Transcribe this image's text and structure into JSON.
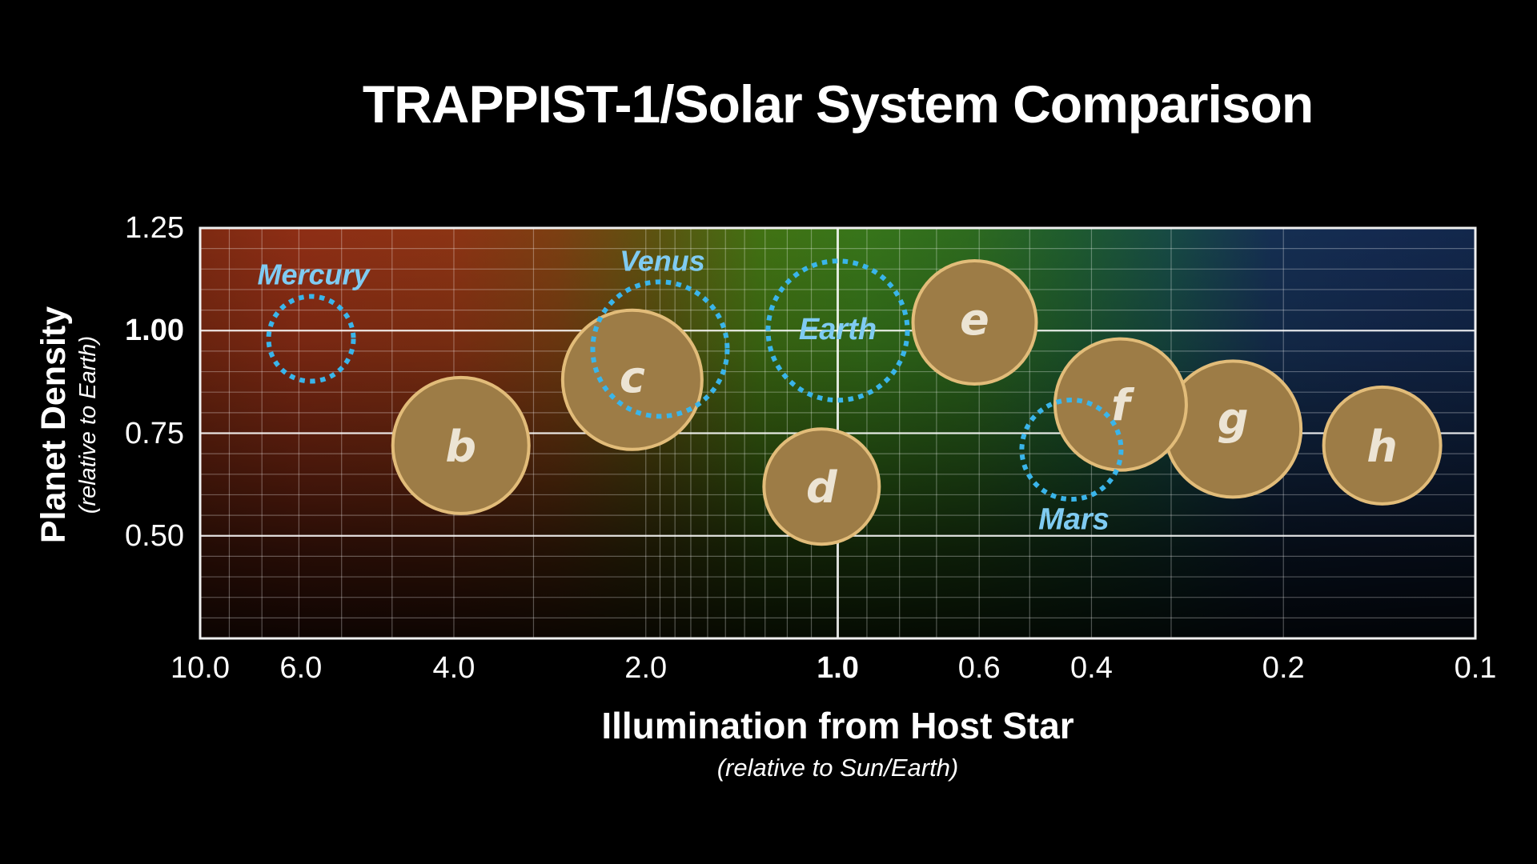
{
  "title": "TRAPPIST-1/Solar System Comparison",
  "axes": {
    "x": {
      "title": "Illumination from Host Star",
      "subtitle": "(relative to Sun/Earth)",
      "scale": "log-reversed",
      "min": 0.1,
      "max": 10,
      "ticks": [
        {
          "label": "10.0",
          "value": 10.0
        },
        {
          "label": "6.0",
          "value": 6.0,
          "render_value": 6.95
        },
        {
          "label": "4.0",
          "value": 4.0
        },
        {
          "label": "2.0",
          "value": 2.0
        },
        {
          "label": "1.0",
          "value": 1.0,
          "bold": true
        },
        {
          "label": "0.6",
          "value": 0.6
        },
        {
          "label": "0.4",
          "value": 0.4
        },
        {
          "label": "0.2",
          "value": 0.2
        },
        {
          "label": "0.1",
          "value": 0.1
        }
      ]
    },
    "y": {
      "title": "Planet Density",
      "subtitle": "(relative to Earth)",
      "min": 0.25,
      "max": 1.25,
      "ticks": [
        {
          "label": "1.25",
          "value": 1.25
        },
        {
          "label": "1.00",
          "value": 1.0,
          "bold": true
        },
        {
          "label": "0.75",
          "value": 0.75
        },
        {
          "label": "0.50",
          "value": 0.5
        }
      ]
    }
  },
  "grid": {
    "x_minor": [
      9,
      8,
      7,
      6,
      5,
      4,
      3,
      2,
      1.9,
      1.8,
      1.7,
      1.6,
      1.5,
      1.4,
      1.3,
      1.2,
      1.1,
      0.9,
      0.8,
      0.7,
      0.6,
      0.5,
      0.4,
      0.3,
      0.2
    ],
    "y_minor": [
      0.3,
      0.35,
      0.4,
      0.45,
      0.5,
      0.55,
      0.6,
      0.65,
      0.7,
      0.75,
      0.8,
      0.85,
      0.9,
      0.95,
      1.0,
      1.05,
      1.1,
      1.15,
      1.2
    ],
    "x_major": [
      1.0
    ],
    "y_major": [
      0.5,
      0.75,
      1.0
    ]
  },
  "chart_data": {
    "type": "scatter-bubble",
    "xlabel": "Illumination from Host Star (relative to Sun/Earth)",
    "ylabel": "Planet Density (relative to Earth)",
    "xlim": [
      10,
      0.1
    ],
    "ylim": [
      0.25,
      1.25
    ],
    "series": [
      {
        "name": "TRAPPIST-1 planets",
        "style": "filled-bubble",
        "draw_order": [
          "b",
          "c",
          "d",
          "e",
          "h",
          "g",
          "f"
        ],
        "points": [
          {
            "label": "b",
            "illumination": 3.9,
            "density": 0.72,
            "radius_px": 85,
            "letter_dy": 20
          },
          {
            "label": "c",
            "illumination": 2.1,
            "density": 0.88,
            "radius_px": 87,
            "letter_dy": 15
          },
          {
            "label": "d",
            "illumination": 1.06,
            "density": 0.62,
            "radius_px": 72,
            "letter_dy": 20
          },
          {
            "label": "e",
            "illumination": 0.61,
            "density": 1.02,
            "radius_px": 77,
            "letter_dy": 15
          },
          {
            "label": "f",
            "illumination": 0.36,
            "density": 0.82,
            "radius_px": 82,
            "letter_dy": 20
          },
          {
            "label": "g",
            "illumination": 0.24,
            "density": 0.76,
            "radius_px": 85,
            "letter_dy": 6
          },
          {
            "label": "h",
            "illumination": 0.14,
            "density": 0.72,
            "radius_px": 73,
            "letter_dy": 20
          }
        ]
      },
      {
        "name": "Solar System planets",
        "style": "dotted-outline",
        "points": [
          {
            "label": "Mercury",
            "illumination": 6.7,
            "density": 0.98,
            "radius_px": 53,
            "label_dx": 3,
            "label_dy": -81,
            "label_size": 36
          },
          {
            "label": "Venus",
            "illumination": 1.9,
            "density": 0.955,
            "radius_px": 84,
            "label_dx": 3,
            "label_dy": -111,
            "label_size": 36
          },
          {
            "label": "Earth",
            "illumination": 1.0,
            "density": 1.0,
            "radius_px": 87,
            "label_dx": 0,
            "label_dy": -3,
            "label_size": 38
          },
          {
            "label": "Mars",
            "illumination": 0.43,
            "density": 0.71,
            "radius_px": 62,
            "label_dx": 3,
            "label_dy": 86,
            "label_size": 38
          }
        ]
      }
    ]
  },
  "colors": {
    "background": "#000000",
    "title": "#ffffff",
    "bubble_fill": "#9d7c46",
    "bubble_stroke": "#e2bc79",
    "bubble_letter": "#ece4d4",
    "bubble_letter_shadow": "rgba(60,38,12,0.45)",
    "dotted_stroke": "#3ab5ea",
    "solar_label": "#7fcbf2",
    "solar_label_shadow": "rgba(8,20,45,0.9)",
    "grid_minor": "rgba(255,255,255,0.30)",
    "grid_major": "rgba(255,255,255,0.85)",
    "plot_border": "#f0f0f0"
  }
}
